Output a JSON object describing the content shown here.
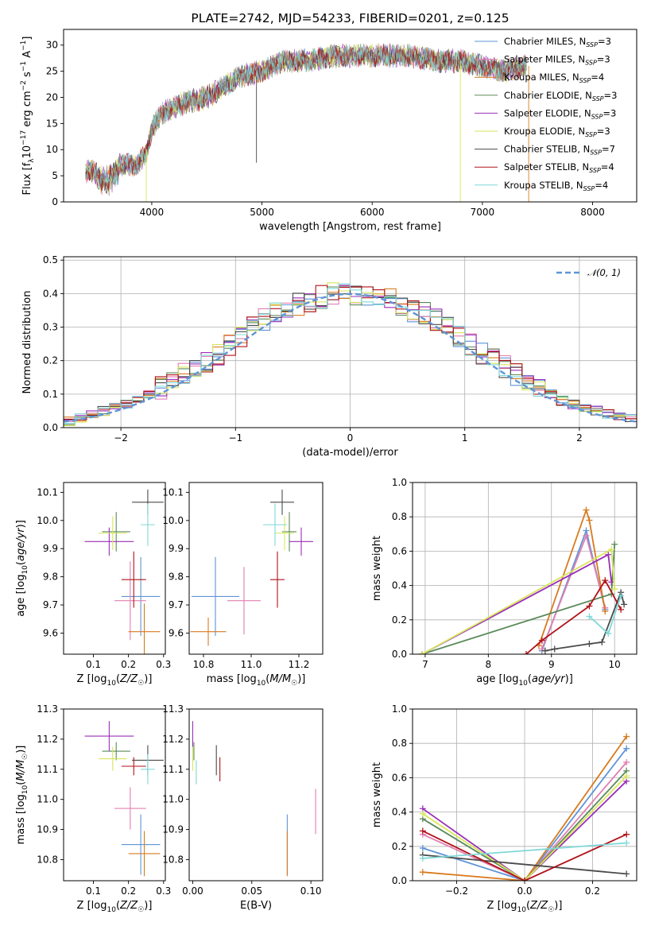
{
  "colors": {
    "Chabrier MILES": "#5f94d6",
    "Salpeter MILES": "#e07fb0",
    "Kroupa MILES": "#d87a1e",
    "Chabrier ELODIE": "#5a8a5a",
    "Salpeter ELODIE": "#9a2fb8",
    "Kroupa ELODIE": "#d8e65a",
    "Chabrier STELIB": "#4a4a4a",
    "Salpeter STELIB": "#b0121a",
    "Kroupa STELIB": "#7fd8d8"
  },
  "chart_data": [
    {
      "type": "line",
      "title": "PLATE=2742, MJD=54233, FIBERID=0201, z=0.125",
      "xlabel": "wavelength [Angstrom, rest frame]",
      "ylabel": "Flux [f_λ 10^-17 erg cm^-2 s^-1 A^-1]",
      "xlim": [
        3200,
        8400
      ],
      "ylim": [
        0,
        33
      ],
      "xticks": [
        "4000",
        "5000",
        "6000",
        "7000",
        "8000"
      ],
      "yticks": [
        "0",
        "5",
        "10",
        "15",
        "20",
        "25",
        "30"
      ],
      "legend": "upper-right",
      "legend_entries": [
        {
          "model": "Chabrier MILES",
          "nssp": "3"
        },
        {
          "model": "Salpeter MILES",
          "nssp": "3"
        },
        {
          "model": "Kroupa MILES",
          "nssp": "4"
        },
        {
          "model": "Chabrier ELODIE",
          "nssp": "3"
        },
        {
          "model": "Salpeter ELODIE",
          "nssp": "3"
        },
        {
          "model": "Kroupa ELODIE",
          "nssp": "3"
        },
        {
          "model": "Chabrier STELIB",
          "nssp": "7"
        },
        {
          "model": "Salpeter STELIB",
          "nssp": "4"
        },
        {
          "model": "Kroupa STELIB",
          "nssp": "4"
        }
      ],
      "continuum": {
        "x": [
          3400,
          3600,
          3700,
          3850,
          3950,
          4000,
          4100,
          4300,
          4500,
          4800,
          5000,
          5200,
          5400,
          5700,
          6000,
          6300,
          6600,
          6800,
          7000,
          7200,
          7400
        ],
        "y": [
          6,
          5,
          7,
          7,
          9,
          14,
          17,
          19,
          20,
          24,
          25,
          27,
          27,
          28,
          28,
          28,
          27,
          27,
          26,
          25,
          26
        ]
      },
      "spikes": [
        {
          "x": 3950,
          "from": 10,
          "to": 0,
          "model": "Kroupa ELODIE"
        },
        {
          "x": 4950,
          "from": 24,
          "to": 7.5,
          "model": "Chabrier STELIB"
        },
        {
          "x": 6800,
          "from": 27,
          "to": 0,
          "model": "Kroupa ELODIE"
        },
        {
          "x": 7420,
          "from": 26,
          "to": 0,
          "model": "Kroupa MILES"
        }
      ]
    },
    {
      "type": "step",
      "xlabel": "(data-model)/error",
      "ylabel": "Normed distribution",
      "xlim": [
        -2.5,
        2.5
      ],
      "ylim": [
        0,
        0.51
      ],
      "xticks": [
        "−2",
        "−1",
        "0",
        "1",
        "2"
      ],
      "yticks": [
        "0.0",
        "0.1",
        "0.2",
        "0.3",
        "0.4",
        "0.5"
      ],
      "grid": true,
      "legend": "upper-right",
      "legend_label": "𝒩(0, 1)",
      "bin_width": 0.1,
      "bin_start": -2.5,
      "envelope": [
        0.02,
        0.03,
        0.04,
        0.05,
        0.06,
        0.07,
        0.08,
        0.1,
        0.12,
        0.14,
        0.16,
        0.18,
        0.2,
        0.22,
        0.25,
        0.27,
        0.3,
        0.32,
        0.34,
        0.35,
        0.37,
        0.38,
        0.39,
        0.4,
        0.4,
        0.4,
        0.4,
        0.39,
        0.38,
        0.37,
        0.35,
        0.34,
        0.32,
        0.3,
        0.27,
        0.25,
        0.22,
        0.2,
        0.18,
        0.16,
        0.14,
        0.12,
        0.1,
        0.08,
        0.07,
        0.06,
        0.05,
        0.04,
        0.03,
        0.03
      ]
    },
    {
      "type": "errorbar",
      "xlabel": "Z [log10(Z/Z☉)]",
      "ylabel": "age  [log10(age/yr)]",
      "xlim": [
        0.015,
        0.305
      ],
      "ylim": [
        9.525,
        10.135
      ],
      "xticks": [
        "0.1",
        "0.2",
        "0.3"
      ],
      "yticks": [
        "9.6",
        "9.7",
        "9.8",
        "9.9",
        "10.0",
        "10.1"
      ],
      "points": [
        {
          "model": "Chabrier MILES",
          "x": 0.235,
          "xerr": 0.055,
          "y": 9.73,
          "yerr": 0.14
        },
        {
          "model": "Salpeter MILES",
          "x": 0.205,
          "xerr": 0.045,
          "y": 9.715,
          "yerr": 0.14
        },
        {
          "model": "Kroupa MILES",
          "x": 0.245,
          "xerr": 0.045,
          "y": 9.605,
          "yerr": 0.1
        },
        {
          "model": "Chabrier ELODIE",
          "x": 0.165,
          "xerr": 0.04,
          "y": 9.96,
          "yerr": 0.07
        },
        {
          "model": "Salpeter ELODIE",
          "x": 0.145,
          "xerr": 0.07,
          "y": 9.925,
          "yerr": 0.05
        },
        {
          "model": "Kroupa ELODIE",
          "x": 0.155,
          "xerr": 0.04,
          "y": 9.955,
          "yerr": 0.06
        },
        {
          "model": "Chabrier STELIB",
          "x": 0.255,
          "xerr": 0.045,
          "y": 10.065,
          "yerr": 0.045
        },
        {
          "model": "Salpeter STELIB",
          "x": 0.215,
          "xerr": 0.035,
          "y": 9.79,
          "yerr": 0.1
        },
        {
          "model": "Kroupa STELIB",
          "x": 0.255,
          "xerr": 0.02,
          "y": 9.985,
          "yerr": 0.075
        }
      ]
    },
    {
      "type": "errorbar",
      "xlabel": "mass [log10(M/M☉)]",
      "ylabel": "",
      "xlim": [
        10.74,
        11.3
      ],
      "ylim": [
        9.525,
        10.135
      ],
      "xticks": [
        "10.8",
        "11.0",
        "11.2"
      ],
      "yticks": [
        "9.6",
        "9.7",
        "9.8",
        "9.9",
        "10.0",
        "10.1"
      ],
      "points": [
        {
          "model": "Chabrier MILES",
          "x": 10.85,
          "xerr": 0.1,
          "y": 9.73,
          "yerr": 0.14
        },
        {
          "model": "Salpeter MILES",
          "x": 10.97,
          "xerr": 0.07,
          "y": 9.715,
          "yerr": 0.12
        },
        {
          "model": "Kroupa MILES",
          "x": 10.82,
          "xerr": 0.075,
          "y": 9.605,
          "yerr": 0.05
        },
        {
          "model": "Chabrier ELODIE",
          "x": 11.16,
          "xerr": 0.03,
          "y": 9.96,
          "yerr": 0.07
        },
        {
          "model": "Salpeter ELODIE",
          "x": 11.21,
          "xerr": 0.05,
          "y": 9.925,
          "yerr": 0.05
        },
        {
          "model": "Kroupa ELODIE",
          "x": 11.14,
          "xerr": 0.04,
          "y": 9.955,
          "yerr": 0.06
        },
        {
          "model": "Chabrier STELIB",
          "x": 11.13,
          "xerr": 0.05,
          "y": 10.065,
          "yerr": 0.045
        },
        {
          "model": "Salpeter STELIB",
          "x": 11.11,
          "xerr": 0.03,
          "y": 9.79,
          "yerr": 0.1
        },
        {
          "model": "Kroupa STELIB",
          "x": 11.1,
          "xerr": 0.05,
          "y": 9.985,
          "yerr": 0.075
        }
      ]
    },
    {
      "type": "line",
      "xlabel": "age  [log10(age/yr)]",
      "ylabel": "mass weight",
      "xlim": [
        6.8,
        10.35
      ],
      "ylim": [
        0,
        1
      ],
      "xticks": [
        "7",
        "8",
        "9",
        "10"
      ],
      "yticks": [
        "0.0",
        "0.2",
        "0.4",
        "0.6",
        "0.8",
        "1.0"
      ],
      "grid": true,
      "series": [
        {
          "model": "Chabrier MILES",
          "x": [
            8.85,
            9.55,
            9.85
          ],
          "y": [
            0.02,
            0.72,
            0.26
          ]
        },
        {
          "model": "Salpeter MILES",
          "x": [
            8.85,
            9.55,
            9.85
          ],
          "y": [
            0.03,
            0.69,
            0.27
          ]
        },
        {
          "model": "Kroupa MILES",
          "x": [
            8.8,
            9.55,
            9.6,
            9.85
          ],
          "y": [
            0.05,
            0.84,
            0.78,
            0.25
          ]
        },
        {
          "model": "Chabrier ELODIE",
          "x": [
            6.95,
            9.95,
            10.0
          ],
          "y": [
            0.0,
            0.35,
            0.64
          ]
        },
        {
          "model": "Salpeter ELODIE",
          "x": [
            6.95,
            9.9,
            9.95
          ],
          "y": [
            0.0,
            0.58,
            0.42
          ]
        },
        {
          "model": "Kroupa ELODIE",
          "x": [
            6.95,
            9.95,
            10.0
          ],
          "y": [
            0.0,
            0.61,
            0.38
          ]
        },
        {
          "model": "Chabrier STELIB",
          "x": [
            8.9,
            9.05,
            9.6,
            9.8,
            10.1,
            10.15
          ],
          "y": [
            0.02,
            0.03,
            0.06,
            0.07,
            0.36,
            0.29
          ]
        },
        {
          "model": "Salpeter STELIB",
          "x": [
            8.6,
            8.85,
            9.6,
            9.85,
            10.1
          ],
          "y": [
            0.0,
            0.08,
            0.28,
            0.43,
            0.26
          ]
        },
        {
          "model": "Kroupa STELIB",
          "x": [
            9.6,
            9.9,
            10.1
          ],
          "y": [
            0.22,
            0.12,
            0.34
          ]
        }
      ]
    },
    {
      "type": "errorbar",
      "xlabel": "Z [log10(Z/Z☉)]",
      "ylabel": "mass [log10(M/M☉)]",
      "xlim": [
        0.015,
        0.305
      ],
      "ylim": [
        10.73,
        11.3
      ],
      "xticks": [
        "0.1",
        "0.2",
        "0.3"
      ],
      "yticks": [
        "10.8",
        "10.9",
        "11.0",
        "11.1",
        "11.2",
        "11.3"
      ],
      "points": [
        {
          "model": "Chabrier MILES",
          "x": 0.235,
          "xerr": 0.055,
          "y": 10.85,
          "yerr": 0.1
        },
        {
          "model": "Salpeter MILES",
          "x": 0.205,
          "xerr": 0.045,
          "y": 10.97,
          "yerr": 0.07
        },
        {
          "model": "Kroupa MILES",
          "x": 0.245,
          "xerr": 0.045,
          "y": 10.82,
          "yerr": 0.075
        },
        {
          "model": "Chabrier ELODIE",
          "x": 0.165,
          "xerr": 0.04,
          "y": 11.16,
          "yerr": 0.03
        },
        {
          "model": "Salpeter ELODIE",
          "x": 0.145,
          "xerr": 0.07,
          "y": 11.21,
          "yerr": 0.05
        },
        {
          "model": "Kroupa ELODIE",
          "x": 0.155,
          "xerr": 0.04,
          "y": 11.135,
          "yerr": 0.04
        },
        {
          "model": "Chabrier STELIB",
          "x": 0.255,
          "xerr": 0.045,
          "y": 11.13,
          "yerr": 0.05
        },
        {
          "model": "Salpeter STELIB",
          "x": 0.215,
          "xerr": 0.035,
          "y": 11.11,
          "yerr": 0.03
        },
        {
          "model": "Kroupa STELIB",
          "x": 0.255,
          "xerr": 0.02,
          "y": 11.1,
          "yerr": 0.05
        }
      ]
    },
    {
      "type": "errorbar",
      "xlabel": "E(B-V)",
      "ylabel": "",
      "xlim": [
        -0.003,
        0.11
      ],
      "ylim": [
        10.73,
        11.3
      ],
      "xticks": [
        "0.00",
        "0.05",
        "0.10"
      ],
      "yticks": [
        "10.8",
        "10.9",
        "11.0",
        "11.1",
        "11.2",
        "11.3"
      ],
      "points": [
        {
          "model": "Chabrier MILES",
          "x": 0.08,
          "xerr": 0,
          "y": 10.85,
          "yerr": 0.1
        },
        {
          "model": "Salpeter MILES",
          "x": 0.104,
          "xerr": 0,
          "y": 10.96,
          "yerr": 0.075
        },
        {
          "model": "Kroupa MILES",
          "x": 0.08,
          "xerr": 0,
          "y": 10.82,
          "yerr": 0.075
        },
        {
          "model": "Chabrier ELODIE",
          "x": 0.001,
          "xerr": 0,
          "y": 11.16,
          "yerr": 0.03
        },
        {
          "model": "Salpeter ELODIE",
          "x": 0.0,
          "xerr": 0,
          "y": 11.21,
          "yerr": 0.05
        },
        {
          "model": "Kroupa ELODIE",
          "x": 0.0,
          "xerr": 0,
          "y": 11.135,
          "yerr": 0.04
        },
        {
          "model": "Chabrier STELIB",
          "x": 0.02,
          "xerr": 0,
          "y": 11.13,
          "yerr": 0.05
        },
        {
          "model": "Salpeter STELIB",
          "x": 0.023,
          "xerr": 0,
          "y": 11.1,
          "yerr": 0.04
        },
        {
          "model": "Kroupa STELIB",
          "x": 0.003,
          "xerr": 0,
          "y": 11.09,
          "yerr": 0.04
        }
      ]
    },
    {
      "type": "line",
      "xlabel": "Z [log10(Z/Z☉)]",
      "ylabel": "mass weight",
      "xlim": [
        -0.33,
        0.33
      ],
      "ylim": [
        0,
        1
      ],
      "xticks": [
        "−0.2",
        "0.0",
        "0.2"
      ],
      "yticks": [
        "0.0",
        "0.2",
        "0.4",
        "0.6",
        "0.8",
        "1.0"
      ],
      "grid": true,
      "series": [
        {
          "model": "Chabrier MILES",
          "x": [
            -0.3,
            0.0,
            0.3
          ],
          "y": [
            0.19,
            0.0,
            0.77
          ]
        },
        {
          "model": "Salpeter MILES",
          "x": [
            -0.3,
            0.0,
            0.3
          ],
          "y": [
            0.27,
            0.0,
            0.69
          ]
        },
        {
          "model": "Kroupa MILES",
          "x": [
            -0.3,
            0.0,
            0.3
          ],
          "y": [
            0.05,
            0.0,
            0.84
          ]
        },
        {
          "model": "Chabrier ELODIE",
          "x": [
            -0.3,
            0.0,
            0.3
          ],
          "y": [
            0.36,
            0.0,
            0.64
          ]
        },
        {
          "model": "Salpeter ELODIE",
          "x": [
            -0.3,
            0.0,
            0.3
          ],
          "y": [
            0.42,
            0.0,
            0.58
          ]
        },
        {
          "model": "Kroupa ELODIE",
          "x": [
            -0.3,
            0.0,
            0.3
          ],
          "y": [
            0.39,
            0.0,
            0.61
          ]
        },
        {
          "model": "Chabrier STELIB",
          "x": [
            -0.3,
            0.3
          ],
          "y": [
            0.15,
            0.04
          ]
        },
        {
          "model": "Salpeter STELIB",
          "x": [
            -0.3,
            0.0,
            0.3
          ],
          "y": [
            0.29,
            0.0,
            0.27
          ]
        },
        {
          "model": "Kroupa STELIB",
          "x": [
            -0.3,
            0.3
          ],
          "y": [
            0.13,
            0.22
          ]
        }
      ]
    }
  ]
}
